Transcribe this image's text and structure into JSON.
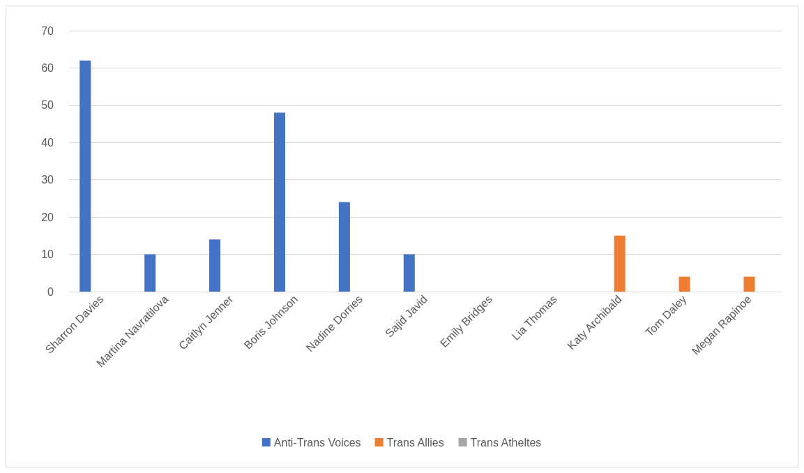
{
  "chart_data": {
    "type": "bar",
    "categories": [
      "Sharron Davies",
      "Martina Navratilova",
      "Caitlyn Jenner",
      "Boris Johnson",
      "Nadine Dorries",
      "Sajid Javid",
      "Emily Bridges",
      "Lia Thomas",
      "Katy Archibald",
      "Tom Daley",
      "Megan Rapinoe"
    ],
    "series": [
      {
        "name": "Anti-Trans Voices",
        "color": "#4472c4",
        "values": [
          62,
          10,
          14,
          48,
          24,
          10,
          null,
          null,
          null,
          null,
          null
        ]
      },
      {
        "name": "Trans Allies",
        "color": "#ed7d31",
        "values": [
          null,
          null,
          null,
          null,
          null,
          null,
          null,
          null,
          15,
          4,
          4
        ]
      },
      {
        "name": "Trans Atheltes",
        "color": "#a5a5a5",
        "values": [
          null,
          null,
          null,
          null,
          null,
          null,
          null,
          null,
          null,
          null,
          null
        ]
      }
    ],
    "ylim": [
      0,
      70
    ],
    "yticks": [
      0,
      10,
      20,
      30,
      40,
      50,
      60,
      70
    ],
    "grid": "y",
    "legend": "bottom"
  }
}
